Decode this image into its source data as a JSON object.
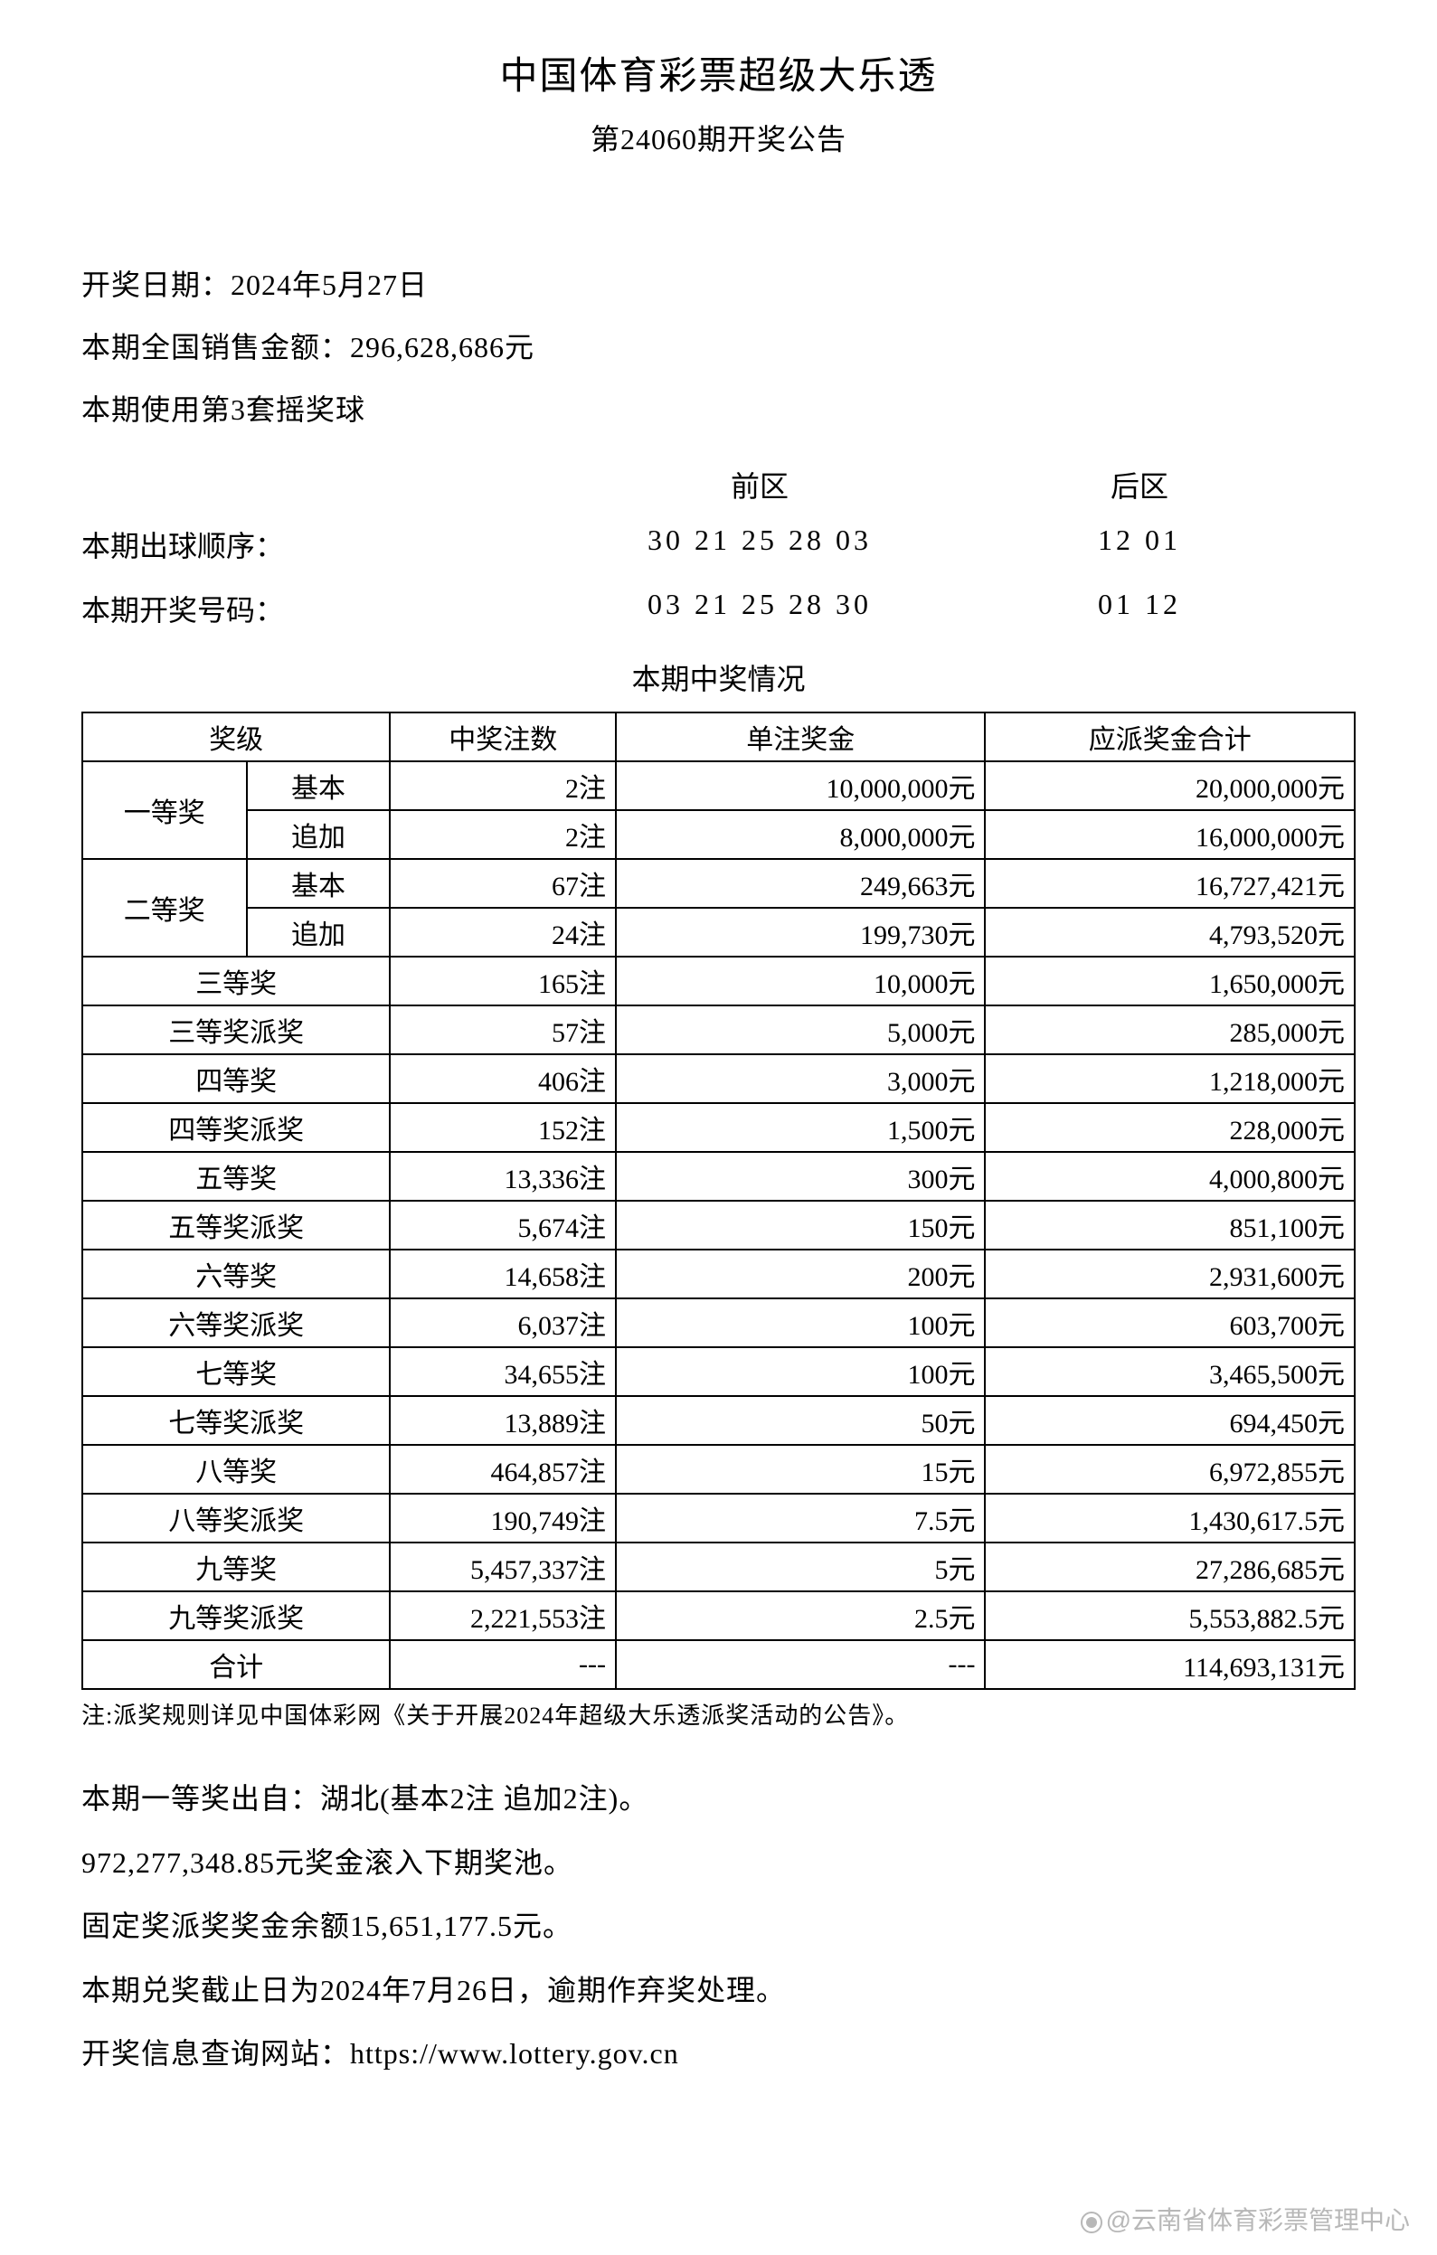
{
  "header": {
    "title": "中国体育彩票超级大乐透",
    "subtitle": "第24060期开奖公告"
  },
  "info": {
    "draw_date": "开奖日期：2024年5月27日",
    "sales": "本期全国销售金额：296,628,686元",
    "ball_set": "本期使用第3套摇奖球"
  },
  "numbers": {
    "front_header": "前区",
    "back_header": "后区",
    "draw_order_label": "本期出球顺序：",
    "draw_order_front": "30 21 25 28 03",
    "draw_order_back": "12 01",
    "winning_label": "本期开奖号码：",
    "winning_front": "03 21 25 28 30",
    "winning_back": "01 12"
  },
  "prize_section_title": "本期中奖情况",
  "table": {
    "headers": {
      "level": "奖级",
      "count": "中奖注数",
      "amount": "单注奖金",
      "total": "应派奖金合计"
    },
    "first": {
      "label": "一等奖",
      "basic_label": "基本",
      "basic_count": "2注",
      "basic_amount": "10,000,000元",
      "basic_total": "20,000,000元",
      "add_label": "追加",
      "add_count": "2注",
      "add_amount": "8,000,000元",
      "add_total": "16,000,000元"
    },
    "second": {
      "label": "二等奖",
      "basic_label": "基本",
      "basic_count": "67注",
      "basic_amount": "249,663元",
      "basic_total": "16,727,421元",
      "add_label": "追加",
      "add_count": "24注",
      "add_amount": "199,730元",
      "add_total": "4,793,520元"
    },
    "rows": [
      {
        "level": "三等奖",
        "count": "165注",
        "amount": "10,000元",
        "total": "1,650,000元"
      },
      {
        "level": "三等奖派奖",
        "count": "57注",
        "amount": "5,000元",
        "total": "285,000元"
      },
      {
        "level": "四等奖",
        "count": "406注",
        "amount": "3,000元",
        "total": "1,218,000元"
      },
      {
        "level": "四等奖派奖",
        "count": "152注",
        "amount": "1,500元",
        "total": "228,000元"
      },
      {
        "level": "五等奖",
        "count": "13,336注",
        "amount": "300元",
        "total": "4,000,800元"
      },
      {
        "level": "五等奖派奖",
        "count": "5,674注",
        "amount": "150元",
        "total": "851,100元"
      },
      {
        "level": "六等奖",
        "count": "14,658注",
        "amount": "200元",
        "total": "2,931,600元"
      },
      {
        "level": "六等奖派奖",
        "count": "6,037注",
        "amount": "100元",
        "total": "603,700元"
      },
      {
        "level": "七等奖",
        "count": "34,655注",
        "amount": "100元",
        "total": "3,465,500元"
      },
      {
        "level": "七等奖派奖",
        "count": "13,889注",
        "amount": "50元",
        "total": "694,450元"
      },
      {
        "level": "八等奖",
        "count": "464,857注",
        "amount": "15元",
        "total": "6,972,855元"
      },
      {
        "level": "八等奖派奖",
        "count": "190,749注",
        "amount": "7.5元",
        "total": "1,430,617.5元"
      },
      {
        "level": "九等奖",
        "count": "5,457,337注",
        "amount": "5元",
        "total": "27,286,685元"
      },
      {
        "level": "九等奖派奖",
        "count": "2,221,553注",
        "amount": "2.5元",
        "total": "5,553,882.5元"
      }
    ],
    "total_row": {
      "level": "合计",
      "count": "---",
      "amount": "---",
      "total": "114,693,131元"
    }
  },
  "note": "注:派奖规则详见中国体彩网《关于开展2024年超级大乐透派奖活动的公告》。",
  "footer": {
    "line1": "本期一等奖出自：湖北(基本2注 追加2注)。",
    "line2": "972,277,348.85元奖金滚入下期奖池。",
    "line3": "固定奖派奖奖金余额15,651,177.5元。",
    "line4": "本期兑奖截止日为2024年7月26日，逾期作弃奖处理。",
    "line5": "开奖信息查询网站：https://www.lottery.gov.cn"
  },
  "watermark": "@云南省体育彩票管理中心"
}
